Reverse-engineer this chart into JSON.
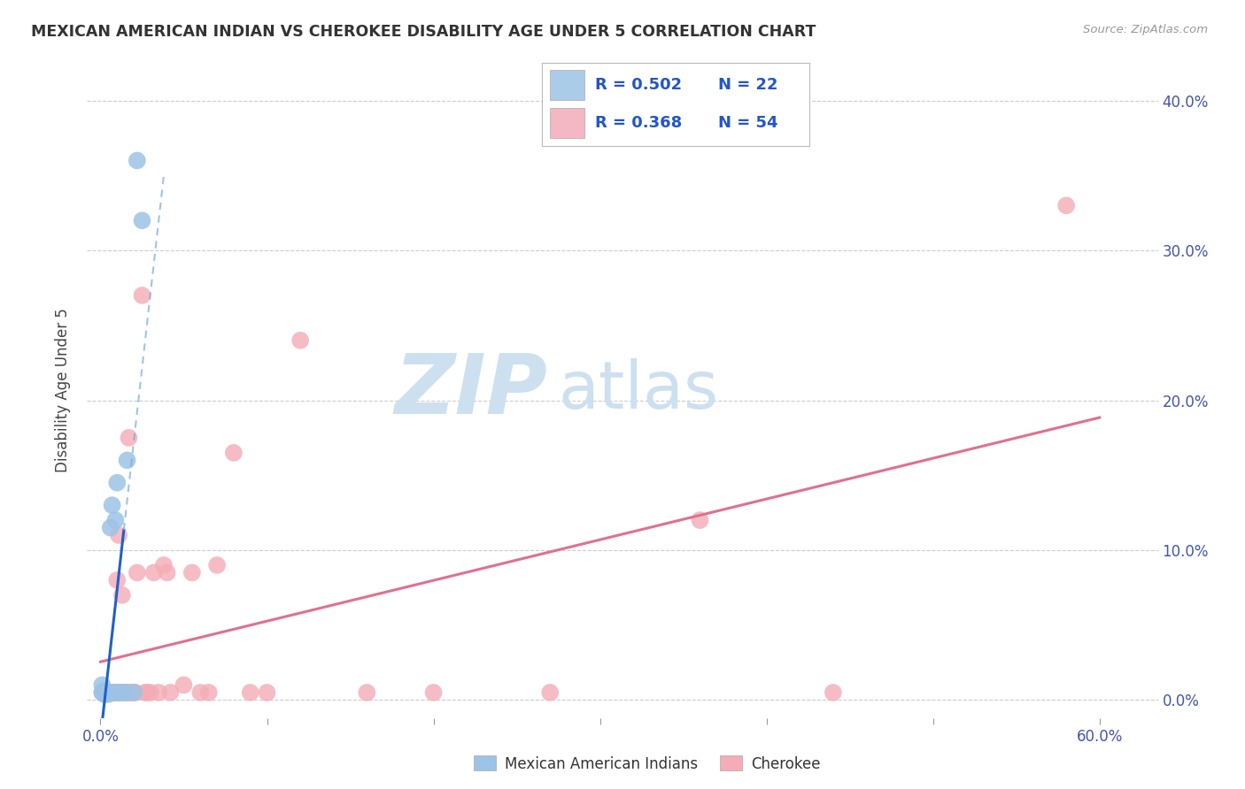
{
  "title": "MEXICAN AMERICAN INDIAN VS CHEROKEE DISABILITY AGE UNDER 5 CORRELATION CHART",
  "source": "Source: ZipAtlas.com",
  "ylabel": "Disability Age Under 5",
  "blue_r": "R = 0.502",
  "blue_n": "N = 22",
  "pink_r": "R = 0.368",
  "pink_n": "N = 54",
  "legend_series1": "Mexican American Indians",
  "legend_series2": "Cherokee",
  "blue_scatter_color": "#9dc3e6",
  "pink_scatter_color": "#f4acb7",
  "trend_blue_solid": "#2060c8",
  "trend_blue_dash": "#7aaad8",
  "trend_pink": "#e07090",
  "watermark_zip": "ZIP",
  "watermark_atlas": "atlas",
  "watermark_color": "#cce0f0",
  "blue_x": [
    0.001,
    0.001,
    0.002,
    0.002,
    0.003,
    0.003,
    0.004,
    0.005,
    0.005,
    0.006,
    0.007,
    0.008,
    0.009,
    0.01,
    0.011,
    0.012,
    0.013,
    0.015,
    0.016,
    0.02,
    0.022,
    0.025
  ],
  "blue_y": [
    0.005,
    0.01,
    0.004,
    0.006,
    0.004,
    0.005,
    0.004,
    0.004,
    0.005,
    0.115,
    0.13,
    0.005,
    0.12,
    0.145,
    0.005,
    0.005,
    0.005,
    0.005,
    0.16,
    0.005,
    0.36,
    0.32
  ],
  "pink_x": [
    0.001,
    0.002,
    0.003,
    0.004,
    0.005,
    0.005,
    0.006,
    0.006,
    0.007,
    0.007,
    0.008,
    0.008,
    0.009,
    0.01,
    0.01,
    0.011,
    0.011,
    0.012,
    0.013,
    0.013,
    0.014,
    0.015,
    0.016,
    0.017,
    0.017,
    0.018,
    0.019,
    0.02,
    0.021,
    0.022,
    0.025,
    0.027,
    0.028,
    0.03,
    0.032,
    0.035,
    0.038,
    0.04,
    0.042,
    0.05,
    0.055,
    0.06,
    0.065,
    0.07,
    0.08,
    0.09,
    0.1,
    0.12,
    0.16,
    0.2,
    0.27,
    0.36,
    0.44,
    0.58
  ],
  "pink_y": [
    0.005,
    0.005,
    0.005,
    0.005,
    0.005,
    0.005,
    0.005,
    0.005,
    0.005,
    0.005,
    0.005,
    0.005,
    0.005,
    0.005,
    0.08,
    0.005,
    0.11,
    0.005,
    0.005,
    0.07,
    0.005,
    0.005,
    0.005,
    0.005,
    0.175,
    0.005,
    0.005,
    0.005,
    0.005,
    0.085,
    0.27,
    0.005,
    0.005,
    0.005,
    0.085,
    0.005,
    0.09,
    0.085,
    0.005,
    0.01,
    0.085,
    0.005,
    0.005,
    0.09,
    0.165,
    0.005,
    0.005,
    0.24,
    0.005,
    0.005,
    0.005,
    0.12,
    0.005,
    0.33
  ],
  "xlim_min": -0.008,
  "xlim_max": 0.635,
  "ylim_min": -0.012,
  "ylim_max": 0.425,
  "xtick_positions": [
    0.0,
    0.1,
    0.2,
    0.3,
    0.4,
    0.5,
    0.6
  ],
  "ytick_positions": [
    0.0,
    0.1,
    0.2,
    0.3,
    0.4
  ],
  "blue_line_x_solid_end": 0.014,
  "blue_line_x_dash_end": 0.038,
  "blue_line_slope": 14.5,
  "blue_line_intercept": -0.005,
  "pink_line_slope": 0.21,
  "pink_line_intercept": 0.02
}
